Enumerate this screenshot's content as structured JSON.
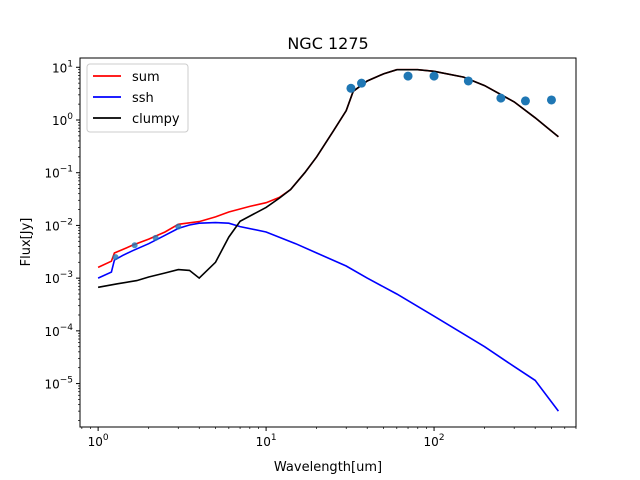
{
  "chart_data": {
    "type": "line",
    "title": "NGC 1275",
    "xlabel": "Wavelength[um]",
    "ylabel": "Flux[Jy]",
    "xscale": "log",
    "yscale": "log",
    "xlim": [
      0.78,
      700
    ],
    "ylim": [
      1.5e-06,
      15
    ],
    "x_ticks": [
      {
        "value": 1,
        "base": "10",
        "exp": "0"
      },
      {
        "value": 10,
        "base": "10",
        "exp": "1"
      },
      {
        "value": 100,
        "base": "10",
        "exp": "2"
      }
    ],
    "y_ticks": [
      {
        "value": 1e-05,
        "base": "10",
        "exp": "−5"
      },
      {
        "value": 0.0001,
        "base": "10",
        "exp": "−4"
      },
      {
        "value": 0.001,
        "base": "10",
        "exp": "−3"
      },
      {
        "value": 0.01,
        "base": "10",
        "exp": "−2"
      },
      {
        "value": 0.1,
        "base": "10",
        "exp": "−1"
      },
      {
        "value": 1,
        "base": "10",
        "exp": "0"
      },
      {
        "value": 10,
        "base": "10",
        "exp": "1"
      }
    ],
    "grid": false,
    "legend_position": "upper-left",
    "series": [
      {
        "name": "sum",
        "color": "#ff0000",
        "points": [
          [
            1.0,
            0.0016
          ],
          [
            1.2,
            0.0021
          ],
          [
            1.25,
            0.003
          ],
          [
            1.4,
            0.0035
          ],
          [
            1.6,
            0.0042
          ],
          [
            2.0,
            0.0055
          ],
          [
            2.5,
            0.0075
          ],
          [
            3.0,
            0.0105
          ],
          [
            3.5,
            0.0112
          ],
          [
            4.0,
            0.0118
          ],
          [
            5.0,
            0.0145
          ],
          [
            6.0,
            0.018
          ],
          [
            8.0,
            0.023
          ],
          [
            10.0,
            0.027
          ],
          [
            12.0,
            0.034
          ],
          [
            14.0,
            0.048
          ],
          [
            17.0,
            0.1
          ],
          [
            20.0,
            0.2
          ],
          [
            25.0,
            0.6
          ],
          [
            30.0,
            1.5
          ],
          [
            33.0,
            3.5
          ],
          [
            40.0,
            5.5
          ],
          [
            50.0,
            7.5
          ],
          [
            60.0,
            9.0
          ],
          [
            80.0,
            9.0
          ],
          [
            100.0,
            8.4
          ],
          [
            150.0,
            6.5
          ],
          [
            200.0,
            4.5
          ],
          [
            300.0,
            2.2
          ],
          [
            400.0,
            1.1
          ],
          [
            550.0,
            0.48
          ]
        ]
      },
      {
        "name": "ssh",
        "color": "#0000ff",
        "points": [
          [
            1.0,
            0.001
          ],
          [
            1.2,
            0.0013
          ],
          [
            1.25,
            0.0022
          ],
          [
            1.4,
            0.0027
          ],
          [
            1.6,
            0.0033
          ],
          [
            2.0,
            0.0045
          ],
          [
            2.5,
            0.0065
          ],
          [
            3.0,
            0.0088
          ],
          [
            3.5,
            0.0102
          ],
          [
            4.0,
            0.011
          ],
          [
            5.0,
            0.0113
          ],
          [
            6.0,
            0.011
          ],
          [
            7.0,
            0.0095
          ],
          [
            10.0,
            0.0075
          ],
          [
            15.0,
            0.0045
          ],
          [
            20.0,
            0.003
          ],
          [
            30.0,
            0.0017
          ],
          [
            40.0,
            0.001
          ],
          [
            60.0,
            0.0005
          ],
          [
            100.0,
            0.00019
          ],
          [
            200.0,
            5e-05
          ],
          [
            300.0,
            2.1e-05
          ],
          [
            400.0,
            1.15e-05
          ],
          [
            550.0,
            3e-06
          ]
        ]
      },
      {
        "name": "clumpy",
        "color": "#000000",
        "points": [
          [
            1.0,
            0.00067
          ],
          [
            1.3,
            0.00078
          ],
          [
            1.7,
            0.0009
          ],
          [
            2.0,
            0.00105
          ],
          [
            2.5,
            0.00125
          ],
          [
            3.0,
            0.00145
          ],
          [
            3.5,
            0.0014
          ],
          [
            4.0,
            0.001
          ],
          [
            5.0,
            0.002
          ],
          [
            6.0,
            0.006
          ],
          [
            7.0,
            0.012
          ],
          [
            10.0,
            0.022
          ],
          [
            12.0,
            0.033
          ],
          [
            14.0,
            0.048
          ],
          [
            17.0,
            0.1
          ],
          [
            20.0,
            0.2
          ],
          [
            25.0,
            0.6
          ],
          [
            30.0,
            1.5
          ],
          [
            33.0,
            3.5
          ],
          [
            40.0,
            5.5
          ],
          [
            50.0,
            7.5
          ],
          [
            60.0,
            9.0
          ],
          [
            80.0,
            9.0
          ],
          [
            100.0,
            8.4
          ],
          [
            150.0,
            6.5
          ],
          [
            200.0,
            4.5
          ],
          [
            300.0,
            2.2
          ],
          [
            400.0,
            1.1
          ],
          [
            550.0,
            0.48
          ]
        ]
      }
    ],
    "scatter": {
      "color": "#1f77b4",
      "points": [
        [
          32.0,
          4.0
        ],
        [
          37.0,
          5.0
        ],
        [
          70.0,
          6.8
        ],
        [
          100.0,
          6.8
        ],
        [
          160.0,
          5.5
        ],
        [
          250.0,
          2.6
        ],
        [
          350.0,
          2.3
        ],
        [
          500.0,
          2.4
        ]
      ]
    },
    "photometry_small": {
      "color": "#1f77b4",
      "points": [
        [
          1.27,
          0.0025
        ],
        [
          1.65,
          0.0042
        ],
        [
          2.2,
          0.0058
        ],
        [
          3.0,
          0.0095
        ]
      ]
    }
  }
}
